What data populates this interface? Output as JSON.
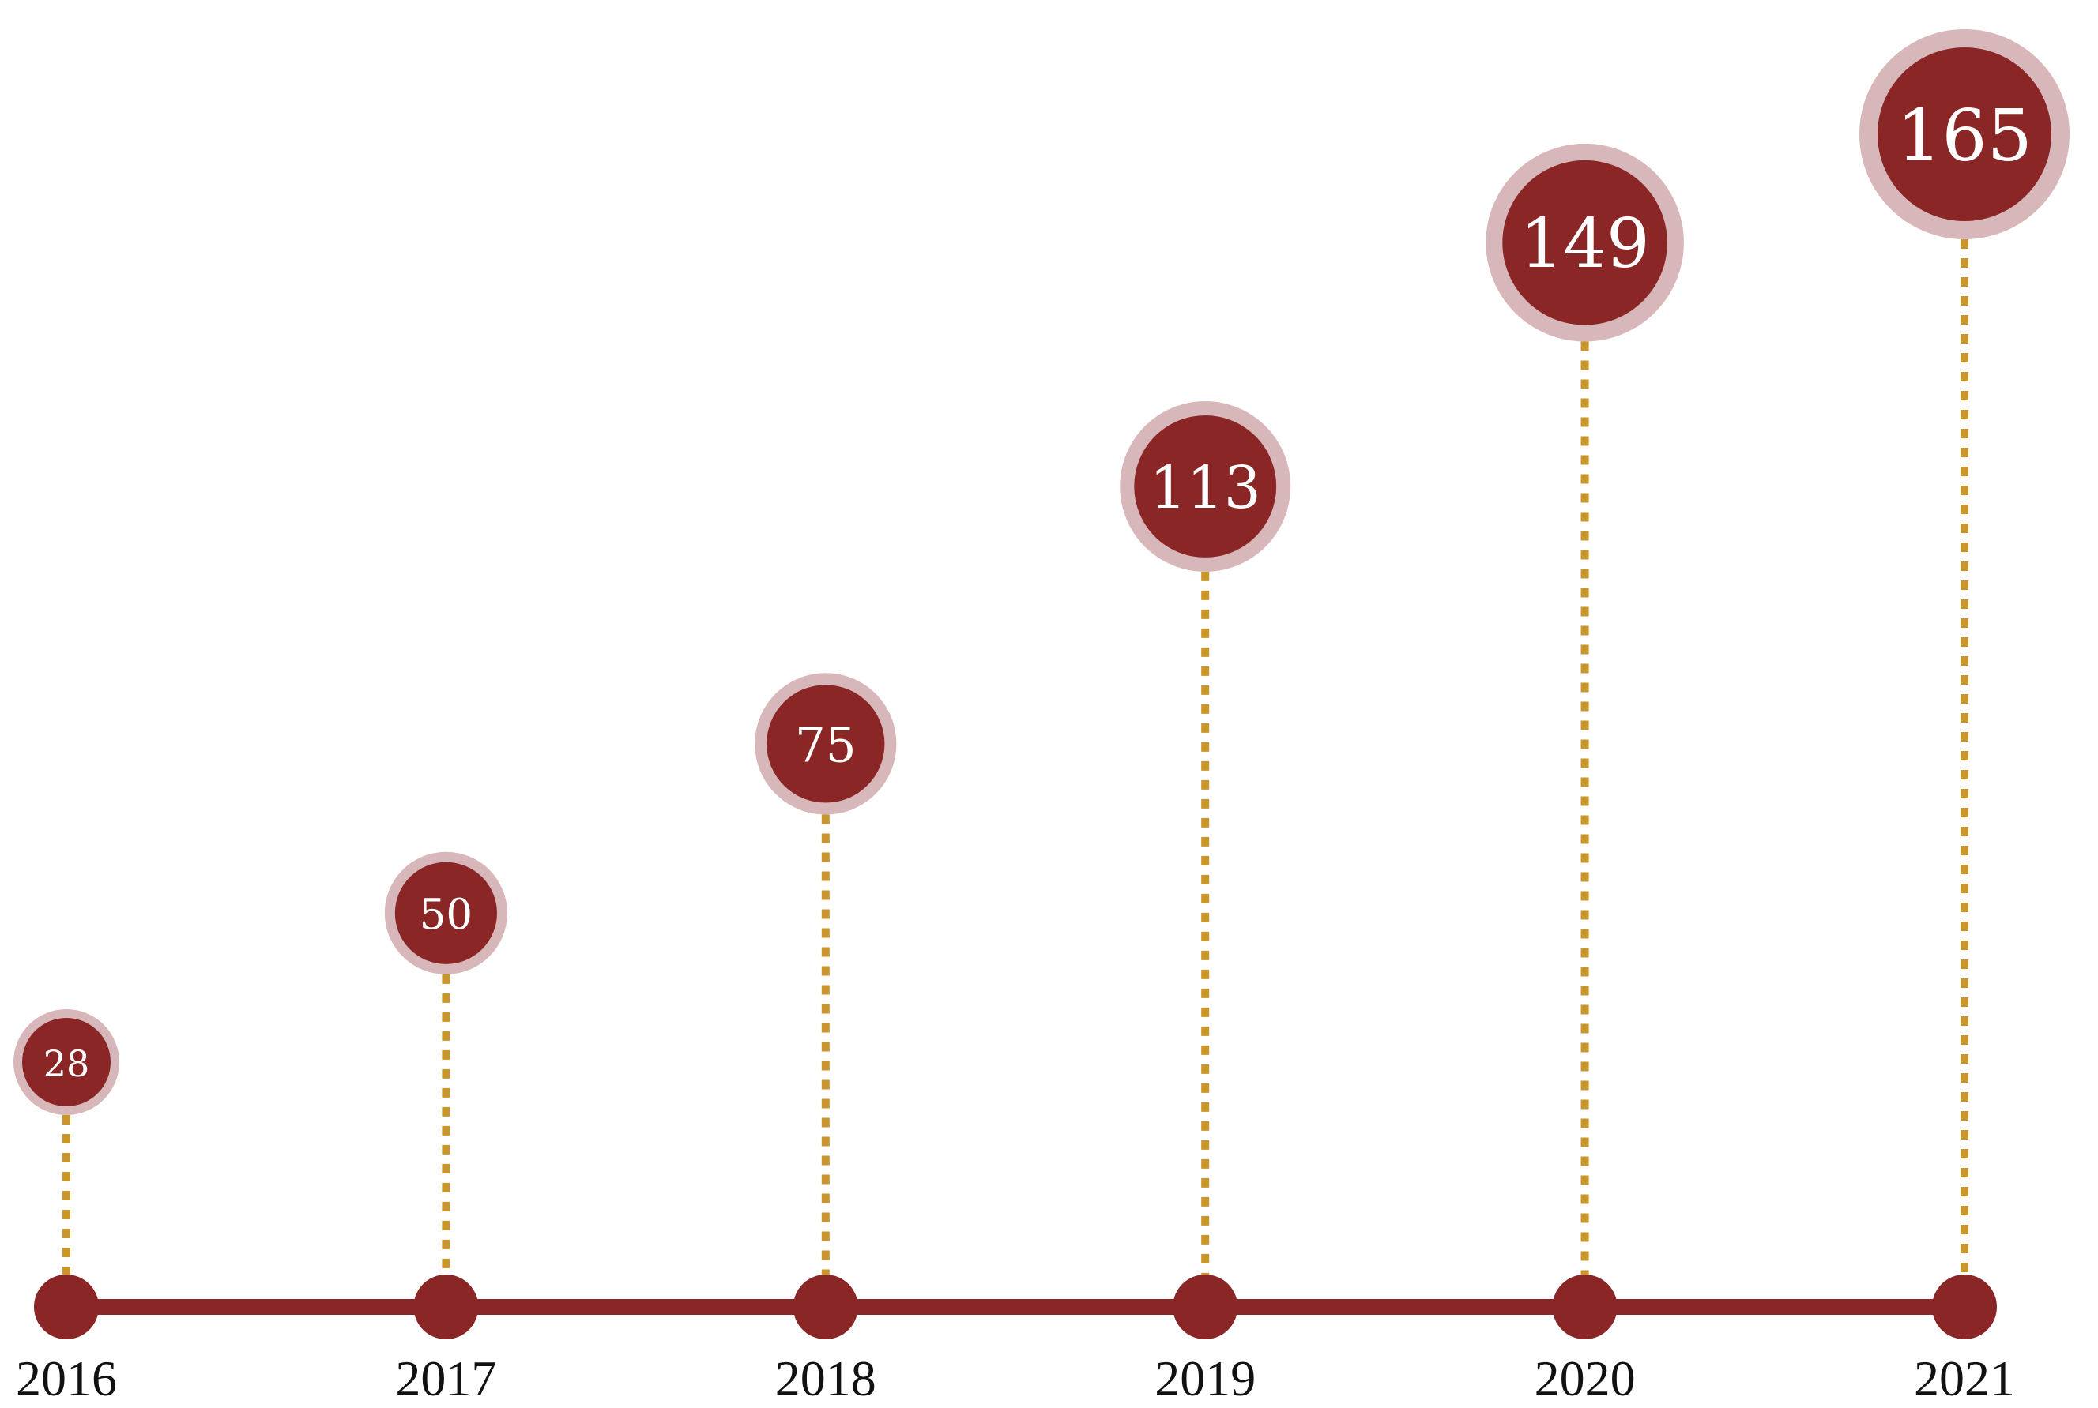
{
  "chart_data": {
    "type": "scatter",
    "title": "",
    "xlabel": "",
    "ylabel": "",
    "categories": [
      "2016",
      "2017",
      "2018",
      "2019",
      "2020",
      "2021"
    ],
    "values": [
      28,
      50,
      75,
      113,
      149,
      165
    ],
    "value_labels": [
      "28",
      "50",
      "75",
      "113",
      "149",
      "165"
    ],
    "grid": false,
    "legend": "none"
  },
  "colors": {
    "bubble_fill": "#8b2626",
    "bubble_halo": "#d8b7ba",
    "connector": "#c8962a",
    "baseline": "#8b2626",
    "label_text": "#ffffff",
    "year_text": "#111111"
  }
}
